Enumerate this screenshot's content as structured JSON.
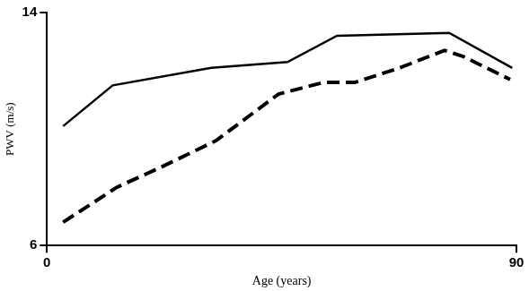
{
  "chart_data": {
    "type": "line",
    "x_label": "Age (years)",
    "y_label": "PWV (m/s)",
    "xlim": [
      0,
      90
    ],
    "xticks": [
      0,
      90
    ],
    "ylim": [
      6,
      14
    ],
    "yticks": [
      6,
      14
    ],
    "grid": false,
    "series": [
      {
        "color": "#000000",
        "line_style": "solid",
        "x": [
          3.1,
          12.6,
          31.5,
          46.1,
          55.6,
          77.1,
          89.2
        ],
        "values": [
          10.1,
          11.5,
          12.1,
          12.3,
          13.2,
          13.3,
          12.1
        ]
      },
      {
        "color": "#000000",
        "line_style": "dashed",
        "x": [
          3.1,
          13.4,
          22.0,
          32.4,
          44.4,
          53.0,
          59.0,
          67.6,
          76.2,
          79.7,
          88.8
        ],
        "values": [
          6.8,
          8.0,
          8.7,
          9.6,
          11.2,
          11.6,
          11.6,
          12.1,
          12.7,
          12.5,
          11.7
        ]
      }
    ]
  }
}
